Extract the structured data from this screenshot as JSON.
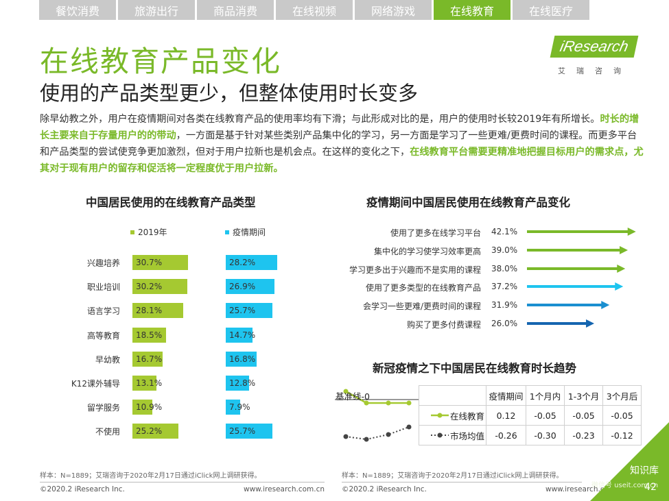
{
  "tabs": [
    {
      "label": "餐饮消费",
      "active": false
    },
    {
      "label": "旅游出行",
      "active": false
    },
    {
      "label": "商品消费",
      "active": false
    },
    {
      "label": "在线视频",
      "active": false
    },
    {
      "label": "网络游戏",
      "active": false
    },
    {
      "label": "在线教育",
      "active": true
    },
    {
      "label": "在线医疗",
      "active": false
    }
  ],
  "page_title": "在线教育产品变化",
  "subtitle": "使用的产品类型更少，但整体使用时长变多",
  "logo": {
    "brand": "iResearch",
    "sub": "艾瑞咨询"
  },
  "body": {
    "p1": "除早幼教之外，用户在疫情期间对各类在线教育产品的使用率均有下滑；与此形成对比的是，用户的使用时长较2019年有所增长。",
    "hl1": "时长的增长主要来自于存量用户的的带动",
    "p2": "，一方面是基于针对某些类别产品集中化的学习，另一方面是学习了一些更难/更费时间的课程。而更多平台和产品类型的尝试使竞争更加激烈，但对于用户拉新也是机会点。在这样的变化之下，",
    "hl2": "在线教育平台需要更精准地把握目标用户的需求点，尤其对于现有用户的留存和促活将一定程度优于用户拉新。"
  },
  "colors": {
    "green": "#a5c931",
    "blue": "#1ec4ef",
    "brand": "#7ab929"
  },
  "chart_data": [
    {
      "type": "bar",
      "title": "中国居民使用的在线教育产品类型",
      "categories": [
        "兴趣培养",
        "职业培训",
        "语言学习",
        "高等教育",
        "早幼教",
        "K12课外辅导",
        "留学服务",
        "不使用"
      ],
      "series": [
        {
          "name": "2019年",
          "values": [
            30.7,
            30.2,
            28.1,
            18.5,
            16.7,
            13.1,
            10.9,
            25.2
          ],
          "labels": [
            "30.7%",
            "30.2%",
            "28.1%",
            "18.5%",
            "16.7%",
            "13.1%",
            "10.9%",
            "25.2%"
          ]
        },
        {
          "name": "疫情期间",
          "values": [
            28.2,
            26.9,
            25.7,
            14.7,
            16.8,
            12.8,
            7.9,
            25.7
          ],
          "labels": [
            "28.2%",
            "26.9%",
            "25.7%",
            "14.7%",
            "16.8%",
            "12.8%",
            "7.9%",
            "25.7%"
          ]
        }
      ]
    },
    {
      "type": "bar",
      "title": "疫情期间中国居民使用在线教育产品变化",
      "categories": [
        "使用了更多在线学习平台",
        "集中化的学习使学习效率更高",
        "学习更多出于兴趣而不是实用的课程",
        "使用了更多类型的在线教育产品",
        "会学习一些更难/更费时间的课程",
        "购买了更多付费课程"
      ],
      "values": [
        42.1,
        39.0,
        38.0,
        37.2,
        31.9,
        26.0
      ],
      "labels": [
        "42.1%",
        "39.0%",
        "38.0%",
        "37.2%",
        "31.9%",
        "26.0%"
      ],
      "arrow_colors": [
        "#7ab929",
        "#7ab929",
        "#7ab929",
        "#1ec4ef",
        "#1a8fd0",
        "#1565b0"
      ]
    },
    {
      "type": "line",
      "title": "新冠疫情之下中国居民在线教育时长趋势",
      "baseline_label": "基准线-0",
      "x": [
        "疫情期间",
        "1个月内",
        "1-3个月",
        "3个月后"
      ],
      "series": [
        {
          "name": "在线教育",
          "values": [
            0.12,
            -0.05,
            -0.05,
            -0.05
          ],
          "labels": [
            "0.12",
            "-0.05",
            "-0.05",
            "-0.05"
          ]
        },
        {
          "name": "市场均值",
          "values": [
            -0.26,
            -0.3,
            -0.23,
            -0.12
          ],
          "labels": [
            "-0.26",
            "-0.30",
            "-0.23",
            "-0.12"
          ]
        }
      ]
    }
  ],
  "footnote_left": "样本：N=1889；艾瑞咨询于2020年2月17日通过iClick网上调研获得。",
  "footnote_right": "样本：N=1889；艾瑞咨询于2020年2月17日通过iClick网上调研获得。",
  "footer_copyright_left": "©2020.2 iResearch Inc.",
  "footer_url_left": "www.iresearch.com.cn",
  "footer_copyright_right": "©2020.2 iResearch Inc.",
  "footer_url_right": "www.iresearch.com.cn",
  "page_number": "42",
  "watermark_text": "知识库",
  "watermark_sub": "微信号 useit.com.cn"
}
